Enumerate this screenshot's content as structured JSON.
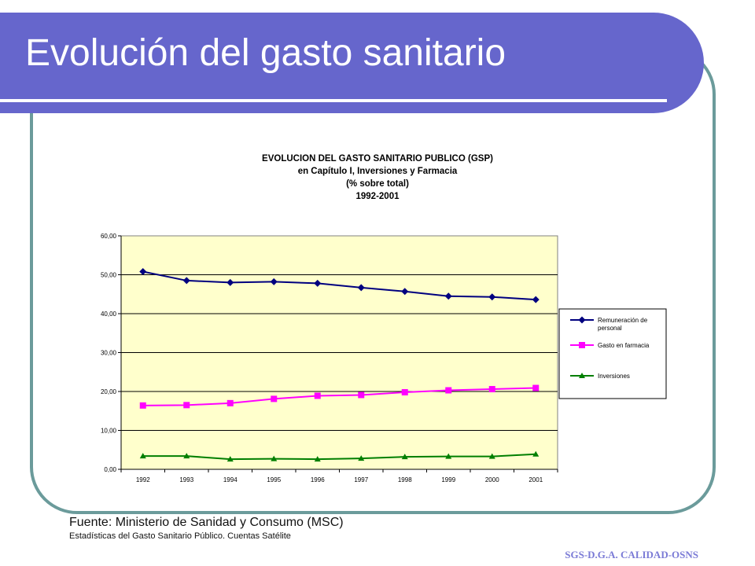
{
  "slide": {
    "title": "Evolución del gasto sanitario",
    "source_main": "Fuente: Ministerio de Sanidad y Consumo (MSC)",
    "source_sub": "Estadísticas del Gasto Sanitario Público. Cuentas Satélite",
    "footer": "SGS-D.G.A. CALIDAD-OSNS"
  },
  "colors": {
    "title_band": "#6666cc",
    "frame": "#6b9b9b",
    "plot_bg": "#ffffcc"
  },
  "chart_data": {
    "type": "line",
    "title_lines": [
      "EVOLUCION DEL GASTO SANITARIO PUBLICO (GSP)",
      "en Capítulo I,  Inversiones y Farmacia",
      "(% sobre total)",
      "1992-2001"
    ],
    "categories": [
      "1992",
      "1993",
      "1994",
      "1995",
      "1996",
      "1997",
      "1998",
      "1999",
      "2000",
      "2001"
    ],
    "ylim": [
      0,
      60
    ],
    "yticks": [
      "0,00",
      "10,00",
      "20,00",
      "30,00",
      "40,00",
      "50,00",
      "60,00"
    ],
    "grid": true,
    "legend_position": "right",
    "series": [
      {
        "name": "Remuneración de personal",
        "legend_lines": [
          "Remuneración de",
          "personal"
        ],
        "color": "#00007f",
        "marker": "diamond",
        "values": [
          50.8,
          48.5,
          48.0,
          48.2,
          47.8,
          46.7,
          45.7,
          44.5,
          44.3,
          43.6
        ]
      },
      {
        "name": "Gasto en farmacia",
        "legend_lines": [
          "Gasto en farmacia"
        ],
        "color": "#ff00ff",
        "marker": "square",
        "values": [
          16.4,
          16.5,
          17.0,
          18.1,
          18.9,
          19.1,
          19.8,
          20.3,
          20.6,
          20.9
        ]
      },
      {
        "name": "Inversiones",
        "legend_lines": [
          "Inversiones"
        ],
        "color": "#007f00",
        "marker": "triangle",
        "values": [
          3.4,
          3.4,
          2.6,
          2.7,
          2.6,
          2.8,
          3.2,
          3.3,
          3.3,
          3.9
        ]
      }
    ]
  }
}
